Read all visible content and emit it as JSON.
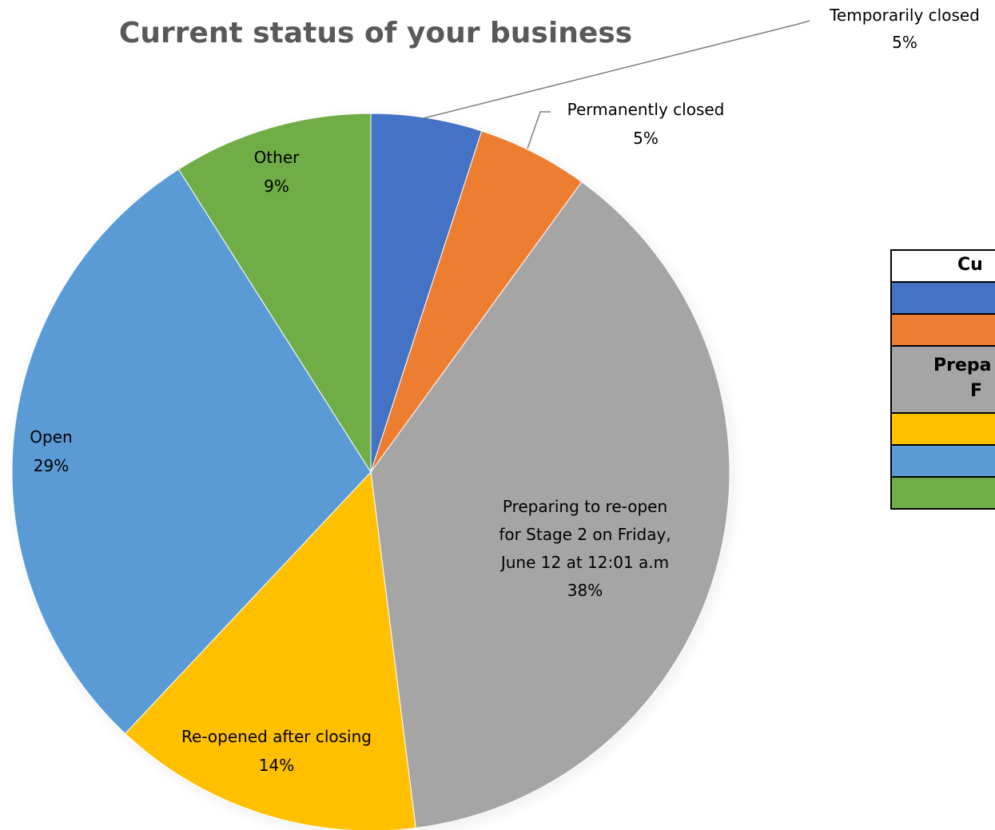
{
  "chart_data": {
    "type": "pie",
    "title": "Current status of your business",
    "slices": [
      {
        "label": "Temporarily closed",
        "percent_label": "5%",
        "value": 5,
        "color": "#4472C4"
      },
      {
        "label": "Permanently closed",
        "percent_label": "5%",
        "value": 5,
        "color": "#ED7D31"
      },
      {
        "label": "Preparing to re-open for Stage 2 on Friday, June 12 at 12:01 a.m",
        "percent_label": "38%",
        "value": 38,
        "color": "#A5A5A5"
      },
      {
        "label": "Re-opened after closing",
        "percent_label": "14%",
        "value": 14,
        "color": "#FFC000"
      },
      {
        "label": "Open",
        "percent_label": "29%",
        "value": 29,
        "color": "#5B9BD5"
      },
      {
        "label": "Other",
        "percent_label": "9%",
        "value": 9,
        "color": "#70AD47"
      }
    ]
  },
  "side_table": {
    "header": "Cu",
    "rows": [
      {
        "text": "",
        "color": "#4472C4"
      },
      {
        "text": "",
        "color": "#ED7D31"
      },
      {
        "text": "Prepa\nF",
        "color": "#A5A5A5"
      },
      {
        "text": "",
        "color": "#FFC000"
      },
      {
        "text": "",
        "color": "#5B9BD5"
      },
      {
        "text": "",
        "color": "#70AD47"
      }
    ]
  }
}
